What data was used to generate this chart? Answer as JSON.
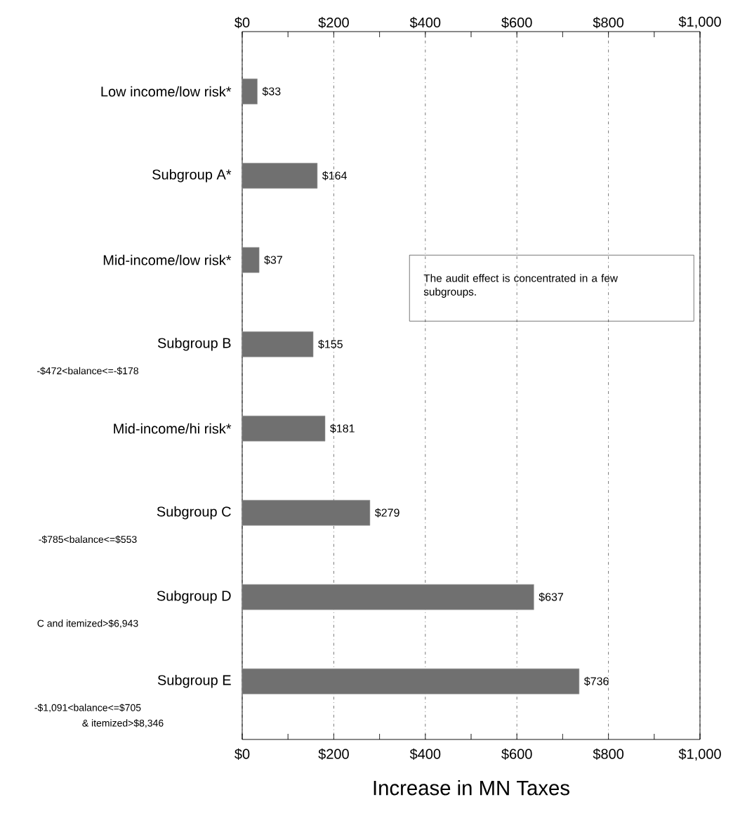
{
  "chart_data": {
    "type": "bar",
    "orientation": "horizontal",
    "xlabel": "Increase in MN Taxes",
    "categories": [
      "Low income/low risk*",
      "Subgroup A*",
      "Mid-income/low risk*",
      "Subgroup B",
      "Mid-income/hi risk*",
      "Subgroup C",
      "Subgroup D",
      "Subgroup E"
    ],
    "values": [
      33,
      164,
      37,
      155,
      181,
      279,
      637,
      736
    ],
    "value_labels": [
      "$33",
      "$164",
      "$37",
      "$155",
      "$181",
      "$279",
      "$637",
      "$736"
    ],
    "color": "#707070",
    "xlim": [
      0,
      1000
    ],
    "xticks": [
      {
        "value": 0,
        "label": "$0"
      },
      {
        "value": 100,
        "label": null
      },
      {
        "value": 200,
        "label": "$200"
      },
      {
        "value": 300,
        "label": null
      },
      {
        "value": 400,
        "label": "$400"
      },
      {
        "value": 500,
        "label": null
      },
      {
        "value": 600,
        "label": "$600"
      },
      {
        "value": 700,
        "label": null
      },
      {
        "value": 800,
        "label": "$800"
      },
      {
        "value": 900,
        "label": null
      },
      {
        "value": 1000,
        "label": "$1,000"
      }
    ],
    "x2lim": [
      0,
      1000
    ],
    "x2ticks": [
      {
        "value": 0,
        "label": "$0"
      },
      {
        "value": 100,
        "label": null
      },
      {
        "value": 200,
        "label": "$200"
      },
      {
        "value": 300,
        "label": null
      },
      {
        "value": 400,
        "label": "$400"
      },
      {
        "value": 500,
        "label": null
      },
      {
        "value": 600,
        "label": "$600"
      },
      {
        "value": 700,
        "label": null
      },
      {
        "value": 800,
        "label": "$800"
      },
      {
        "value": 900,
        "label": null
      },
      {
        "value": 1000,
        "label": "$1,000"
      }
    ],
    "grid": "x",
    "annotations": [
      "The audit effect is concentrated in a few subgroups.",
      "-$472<balance<=-$178",
      "-$785<balance<=$553",
      "C and itemized>$6,943",
      "-$1,091<balance<=$705",
      "& itemized>$8,346"
    ]
  }
}
